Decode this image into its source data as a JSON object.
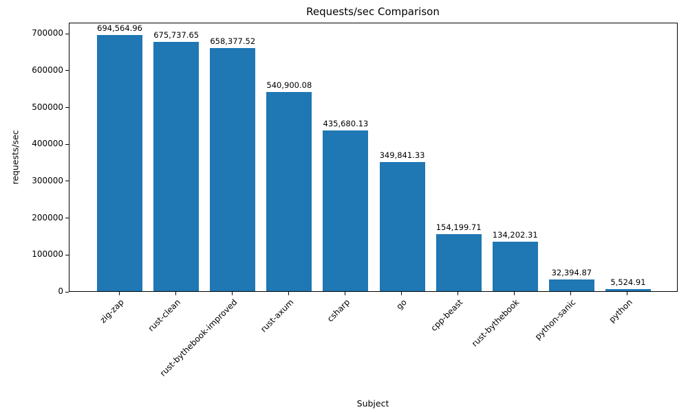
{
  "chart_data": {
    "type": "bar",
    "title": "Requests/sec Comparison",
    "xlabel": "Subject",
    "ylabel": "requests/sec",
    "categories": [
      "zig-zap",
      "rust-clean",
      "rust-bythebook-improved",
      "rust-axum",
      "csharp",
      "go",
      "cpp-beast",
      "rust-bythebook",
      "python-sanic",
      "python"
    ],
    "values": [
      694564.96,
      675737.65,
      658377.52,
      540900.08,
      435680.13,
      349841.33,
      154199.71,
      134202.31,
      32394.87,
      5524.91
    ],
    "value_labels": [
      "694,564.96",
      "675,737.65",
      "658,377.52",
      "540,900.08",
      "435,680.13",
      "349,841.33",
      "154,199.71",
      "134,202.31",
      "32,394.87",
      "5,524.91"
    ],
    "yticks": [
      0,
      100000,
      200000,
      300000,
      400000,
      500000,
      600000,
      700000
    ],
    "ylim": [
      0,
      730000
    ],
    "bar_color": "#1f77b4",
    "grid": false,
    "legend": false
  }
}
